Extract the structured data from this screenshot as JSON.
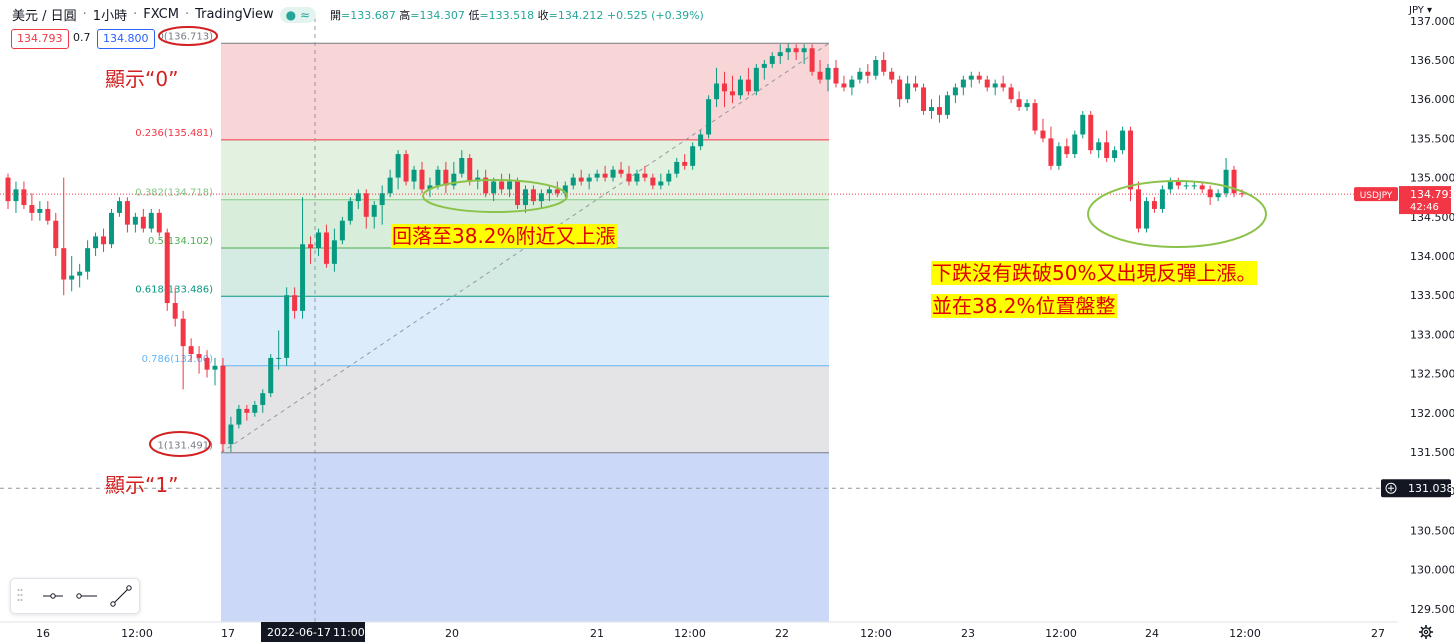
{
  "header": {
    "symbol": "美元 / 日圓",
    "interval": "1小時",
    "broker": "FXCM",
    "platform": "TradingView",
    "status_icon": "≈",
    "ohlc": {
      "open_label": "開",
      "open": "133.687",
      "high_label": "高",
      "high": "134.307",
      "low_label": "低",
      "low": "133.518",
      "close_label": "收",
      "close": "134.212",
      "change": "+0.525 (+0.39%)"
    },
    "sell_price": "134.793",
    "spread": "0.7",
    "buy_price": "134.800"
  },
  "price_axis": {
    "currency": "JPY",
    "ticks": [
      "137.000",
      "136.500",
      "136.000",
      "135.500",
      "135.000",
      "134.500",
      "134.000",
      "133.500",
      "133.000",
      "132.500",
      "132.000",
      "131.500",
      "131.000",
      "130.500",
      "130.000",
      "129.500"
    ],
    "current_symbol": "USDJPY",
    "current_price": "134.793",
    "countdown": "42:46",
    "crosshair_price": "131.038"
  },
  "time_axis": {
    "ticks": [
      "16",
      "12:00",
      "17",
      "20",
      "21",
      "12:00",
      "22",
      "12:00",
      "23",
      "12:00",
      "24",
      "12:00",
      "27"
    ],
    "crosshair_label": "2022-06-17",
    "crosshair_time": "11:00"
  },
  "fib_levels": [
    {
      "label": "0(136.713)",
      "price": 136.713,
      "color": "#787b86"
    },
    {
      "label": "0.236(135.481)",
      "price": 135.481,
      "color": "#f23645"
    },
    {
      "label": "0.382(134.718)",
      "price": 134.718,
      "color": "#81c784"
    },
    {
      "label": "0.5(134.102)",
      "price": 134.102,
      "color": "#4caf50"
    },
    {
      "label": "0.618(133.486)",
      "price": 133.486,
      "color": "#089981"
    },
    {
      "label": "0.786(132.60)",
      "price": 132.6,
      "color": "#64b5f6"
    },
    {
      "label": "1(131.491)",
      "price": 131.491,
      "color": "#787b86"
    }
  ],
  "annotations": {
    "label_zero": "顯示“0”",
    "label_one": "顯示“1”",
    "pullback": "回落至38.2%附近又上漲",
    "no_break_line1": "下跌沒有跌破50%又出現反彈上漲。",
    "no_break_line2": "並在38.2%位置盤整"
  },
  "colors": {
    "up": "#089981",
    "down": "#f23645",
    "annotation_red": "#d32020",
    "highlight": "#ffff00",
    "ellipse_green": "#8bc34a"
  },
  "drawing_tools": [
    "horizontal-ray-icon",
    "horizontal-line-icon",
    "trend-line-icon"
  ],
  "chart_data": {
    "type": "candlestick",
    "symbol": "USDJPY",
    "timeframe": "1H",
    "ylim": [
      129.4,
      137.05
    ],
    "y_unit": "JPY",
    "candles": [
      [
        135.0,
        135.05,
        134.6,
        134.7
      ],
      [
        134.7,
        134.95,
        134.55,
        134.85
      ],
      [
        134.85,
        134.95,
        134.6,
        134.65
      ],
      [
        134.65,
        134.8,
        134.45,
        134.55
      ],
      [
        134.55,
        134.7,
        134.45,
        134.6
      ],
      [
        134.6,
        134.7,
        134.4,
        134.45
      ],
      [
        134.45,
        134.55,
        134.0,
        134.1
      ],
      [
        134.1,
        135.0,
        133.5,
        133.7
      ],
      [
        133.7,
        134.0,
        133.55,
        133.75
      ],
      [
        133.75,
        133.9,
        133.6,
        133.8
      ],
      [
        133.8,
        134.2,
        133.7,
        134.1
      ],
      [
        134.1,
        134.3,
        134.0,
        134.25
      ],
      [
        134.25,
        134.35,
        134.05,
        134.15
      ],
      [
        134.15,
        134.6,
        134.1,
        134.55
      ],
      [
        134.55,
        134.75,
        134.5,
        134.7
      ],
      [
        134.7,
        134.75,
        134.3,
        134.4
      ],
      [
        134.4,
        134.55,
        134.3,
        134.5
      ],
      [
        134.5,
        134.6,
        134.3,
        134.35
      ],
      [
        134.35,
        134.6,
        134.3,
        134.55
      ],
      [
        134.55,
        134.6,
        134.25,
        134.3
      ],
      [
        134.3,
        134.35,
        133.3,
        133.4
      ],
      [
        133.4,
        133.6,
        133.1,
        133.2
      ],
      [
        133.2,
        133.3,
        132.3,
        132.85
      ],
      [
        132.85,
        132.95,
        132.65,
        132.75
      ],
      [
        132.75,
        132.85,
        132.5,
        132.7
      ],
      [
        132.7,
        132.8,
        132.45,
        132.55
      ],
      [
        132.55,
        132.7,
        132.35,
        132.6
      ],
      [
        132.6,
        132.7,
        131.5,
        131.6
      ],
      [
        131.6,
        131.95,
        131.5,
        131.85
      ],
      [
        131.85,
        132.1,
        131.8,
        132.05
      ],
      [
        132.05,
        132.1,
        131.9,
        132.0
      ],
      [
        132.0,
        132.15,
        131.95,
        132.1
      ],
      [
        132.1,
        132.3,
        132.0,
        132.25
      ],
      [
        132.25,
        132.75,
        132.2,
        132.7
      ],
      [
        132.7,
        133.05,
        132.55,
        132.7
      ],
      [
        132.7,
        133.6,
        132.6,
        133.5
      ],
      [
        133.5,
        133.6,
        133.2,
        133.3
      ],
      [
        133.3,
        134.75,
        133.2,
        134.15
      ],
      [
        134.15,
        134.25,
        133.9,
        134.1
      ],
      [
        134.1,
        134.35,
        134.0,
        134.3
      ],
      [
        134.3,
        134.4,
        133.85,
        133.9
      ],
      [
        133.9,
        134.35,
        133.8,
        134.2
      ],
      [
        134.2,
        134.5,
        134.15,
        134.45
      ],
      [
        134.45,
        134.75,
        134.4,
        134.7
      ],
      [
        134.7,
        134.85,
        134.6,
        134.8
      ],
      [
        134.8,
        134.85,
        134.35,
        134.5
      ],
      [
        134.5,
        134.7,
        134.35,
        134.65
      ],
      [
        134.65,
        134.9,
        134.4,
        134.8
      ],
      [
        134.8,
        135.1,
        134.75,
        135.0
      ],
      [
        135.0,
        135.35,
        134.85,
        135.3
      ],
      [
        135.3,
        135.35,
        134.9,
        134.95
      ],
      [
        134.95,
        135.15,
        134.85,
        135.1
      ],
      [
        135.1,
        135.2,
        134.8,
        134.85
      ],
      [
        134.85,
        135.0,
        134.75,
        134.9
      ],
      [
        134.9,
        135.15,
        134.85,
        135.1
      ],
      [
        135.1,
        135.2,
        134.8,
        134.9
      ],
      [
        134.9,
        135.2,
        134.85,
        135.05
      ],
      [
        135.05,
        135.35,
        135.0,
        135.25
      ],
      [
        135.25,
        135.3,
        134.9,
        134.95
      ],
      [
        134.95,
        135.1,
        134.85,
        135.0
      ],
      [
        135.0,
        135.1,
        134.75,
        134.8
      ],
      [
        134.8,
        135.0,
        134.7,
        134.95
      ],
      [
        134.95,
        135.05,
        134.8,
        134.85
      ],
      [
        134.85,
        135.05,
        134.75,
        134.95
      ],
      [
        134.95,
        135.0,
        134.6,
        134.65
      ],
      [
        134.65,
        134.9,
        134.55,
        134.85
      ],
      [
        134.85,
        134.9,
        134.65,
        134.7
      ],
      [
        134.7,
        134.85,
        134.6,
        134.8
      ],
      [
        134.8,
        134.9,
        134.7,
        134.85
      ],
      [
        134.85,
        134.95,
        134.75,
        134.8
      ],
      [
        134.8,
        134.95,
        134.75,
        134.9
      ],
      [
        134.9,
        135.05,
        134.85,
        135.0
      ],
      [
        135.0,
        135.1,
        134.9,
        134.95
      ],
      [
        134.95,
        135.05,
        134.85,
        135.0
      ],
      [
        135.0,
        135.1,
        134.95,
        135.05
      ],
      [
        135.05,
        135.15,
        134.95,
        135.0
      ],
      [
        135.0,
        135.15,
        134.95,
        135.1
      ],
      [
        135.1,
        135.2,
        135.0,
        135.05
      ],
      [
        135.05,
        135.15,
        134.9,
        134.95
      ],
      [
        134.95,
        135.1,
        134.9,
        135.05
      ],
      [
        135.05,
        135.15,
        134.95,
        135.0
      ],
      [
        135.0,
        135.05,
        134.85,
        134.9
      ],
      [
        134.9,
        135.05,
        134.85,
        134.95
      ],
      [
        134.95,
        135.1,
        134.9,
        135.05
      ],
      [
        135.05,
        135.25,
        135.0,
        135.2
      ],
      [
        135.2,
        135.3,
        135.1,
        135.15
      ],
      [
        135.15,
        135.45,
        135.1,
        135.4
      ],
      [
        135.4,
        135.6,
        135.35,
        135.55
      ],
      [
        135.55,
        136.05,
        135.5,
        136.0
      ],
      [
        136.0,
        136.4,
        135.9,
        136.2
      ],
      [
        136.2,
        136.35,
        135.9,
        136.1
      ],
      [
        136.1,
        136.3,
        135.95,
        136.05
      ],
      [
        136.05,
        136.3,
        136.0,
        136.25
      ],
      [
        136.25,
        136.4,
        136.05,
        136.1
      ],
      [
        136.1,
        136.45,
        136.05,
        136.4
      ],
      [
        136.4,
        136.5,
        136.25,
        136.45
      ],
      [
        136.45,
        136.6,
        136.4,
        136.55
      ],
      [
        136.55,
        136.7,
        136.45,
        136.6
      ],
      [
        136.6,
        136.71,
        136.5,
        136.65
      ],
      [
        136.65,
        136.7,
        136.5,
        136.6
      ],
      [
        136.6,
        136.7,
        136.45,
        136.65
      ],
      [
        136.65,
        136.7,
        136.3,
        136.35
      ],
      [
        136.35,
        136.5,
        136.2,
        136.25
      ],
      [
        136.25,
        136.45,
        136.1,
        136.4
      ],
      [
        136.4,
        136.5,
        136.15,
        136.2
      ],
      [
        136.2,
        136.3,
        136.1,
        136.15
      ],
      [
        136.15,
        136.3,
        136.05,
        136.25
      ],
      [
        136.25,
        136.4,
        136.2,
        136.35
      ],
      [
        136.35,
        136.45,
        136.2,
        136.3
      ],
      [
        136.3,
        136.55,
        136.25,
        136.5
      ],
      [
        136.5,
        136.6,
        136.3,
        136.35
      ],
      [
        136.35,
        136.4,
        136.2,
        136.25
      ],
      [
        136.25,
        136.3,
        135.9,
        136.0
      ],
      [
        136.0,
        136.3,
        135.95,
        136.2
      ],
      [
        136.2,
        136.3,
        136.1,
        136.15
      ],
      [
        136.15,
        136.2,
        135.8,
        135.85
      ],
      [
        135.85,
        136.0,
        135.75,
        135.9
      ],
      [
        135.9,
        136.05,
        135.7,
        135.8
      ],
      [
        135.8,
        136.1,
        135.75,
        136.05
      ],
      [
        136.05,
        136.2,
        135.95,
        136.15
      ],
      [
        136.15,
        136.3,
        136.05,
        136.25
      ],
      [
        136.25,
        136.35,
        136.15,
        136.3
      ],
      [
        136.3,
        136.35,
        136.2,
        136.25
      ],
      [
        136.25,
        136.3,
        136.1,
        136.15
      ],
      [
        136.15,
        136.25,
        136.05,
        136.2
      ],
      [
        136.2,
        136.3,
        136.1,
        136.15
      ],
      [
        136.15,
        136.2,
        135.95,
        136.0
      ],
      [
        136.0,
        136.1,
        135.85,
        135.9
      ],
      [
        135.9,
        136.0,
        135.85,
        135.95
      ],
      [
        135.95,
        136.0,
        135.55,
        135.6
      ],
      [
        135.6,
        135.75,
        135.45,
        135.5
      ],
      [
        135.5,
        135.65,
        135.1,
        135.15
      ],
      [
        135.15,
        135.45,
        135.1,
        135.4
      ],
      [
        135.4,
        135.5,
        135.25,
        135.3
      ],
      [
        135.3,
        135.6,
        135.25,
        135.55
      ],
      [
        135.55,
        135.85,
        135.5,
        135.8
      ],
      [
        135.8,
        135.85,
        135.3,
        135.35
      ],
      [
        135.35,
        135.5,
        135.25,
        135.45
      ],
      [
        135.45,
        135.6,
        135.2,
        135.25
      ],
      [
        135.25,
        135.4,
        135.2,
        135.35
      ],
      [
        135.35,
        135.65,
        135.3,
        135.6
      ],
      [
        135.6,
        135.65,
        134.7,
        134.85
      ],
      [
        134.85,
        134.95,
        134.3,
        134.35
      ],
      [
        134.35,
        134.75,
        134.3,
        134.7
      ],
      [
        134.7,
        134.75,
        134.55,
        134.6
      ],
      [
        134.6,
        134.9,
        134.55,
        134.85
      ],
      [
        134.85,
        135.0,
        134.8,
        134.95
      ],
      [
        134.95,
        135.0,
        134.85,
        134.9
      ],
      [
        134.9,
        134.95,
        134.85,
        134.9
      ],
      [
        134.9,
        134.95,
        134.85,
        134.9
      ],
      [
        134.9,
        134.95,
        134.8,
        134.85
      ],
      [
        134.85,
        134.9,
        134.65,
        134.75
      ],
      [
        134.75,
        134.85,
        134.7,
        134.8
      ],
      [
        134.8,
        135.25,
        134.75,
        135.1
      ],
      [
        135.1,
        135.15,
        134.75,
        134.8
      ],
      [
        134.8,
        134.85,
        134.75,
        134.79
      ]
    ]
  }
}
